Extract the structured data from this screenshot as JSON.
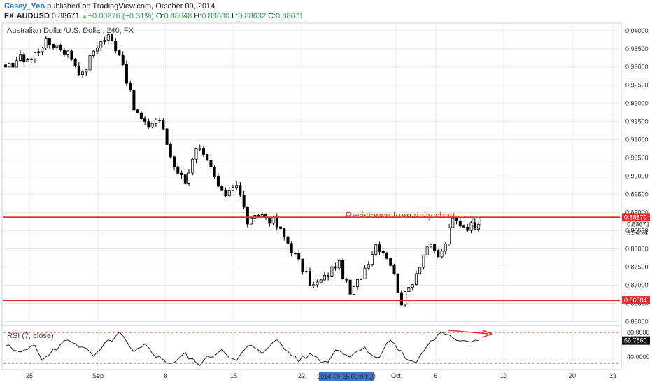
{
  "header": {
    "author": "Casey_Yeo",
    "published": " published on TradingView.com, October 09, 2014",
    "symbol": "FX:AUDUSD",
    "last": "0.88671",
    "change": "+0.00276 (+0.31%)",
    "o_label": "O:",
    "o_value": "0.88648",
    "h_label": "H:",
    "h_value": "0.88680",
    "l_label": "L:",
    "l_value": "0.88632",
    "c_label": "C:",
    "c_value": "0.88671"
  },
  "colors": {
    "candle": "#000000",
    "resistance": "#e5302a",
    "rsi_line": "#222222",
    "rsi_band": "#e5302a",
    "grid": "#e8e8e8",
    "date_tag": "#3d78c6"
  },
  "chart_data": [
    {
      "type": "candlestick",
      "title": "Australian Dollar/U.S. Dollar, 240, FX",
      "ylim": [
        0.8595,
        0.9415
      ],
      "y_ticks": [
        "0.94000",
        "0.93500",
        "0.93000",
        "0.92500",
        "0.92000",
        "0.91500",
        "0.91000",
        "0.90500",
        "0.90000",
        "0.89500",
        "0.89000",
        "0.88500",
        "0.88000",
        "0.87500",
        "0.87000",
        "0.86500",
        "0.86000"
      ],
      "x_ticks": [
        "25",
        "Sep",
        "8",
        "15",
        "22",
        "Oct",
        "6",
        "13",
        "20",
        "23"
      ],
      "x_tag": "2014-09-25 09:00:00",
      "time_to_close": "3:54:24",
      "last_price": "0.88671",
      "horizontal_lines": [
        {
          "value": 0.8887,
          "label": "0.88870"
        },
        {
          "value": 0.86584,
          "label": "0.86584"
        }
      ],
      "annotation": "Resistance from daily chart",
      "close_path": [
        0.929,
        0.9325,
        0.9322,
        0.9368,
        0.936,
        0.9335,
        0.9275,
        0.9355,
        0.9385,
        0.9335,
        0.9188,
        0.9135,
        0.9162,
        0.9045,
        0.8985,
        0.9075,
        0.9025,
        0.8942,
        0.8987,
        0.8867,
        0.8895,
        0.8875,
        0.8822,
        0.876,
        0.8695,
        0.872,
        0.8765,
        0.8672,
        0.874,
        0.8815,
        0.8775,
        0.8652,
        0.8725,
        0.881,
        0.8775,
        0.888,
        0.8862,
        0.88671
      ],
      "points": 130
    },
    {
      "type": "line",
      "title": "RSI (7, close)",
      "ylim": [
        22,
        88
      ],
      "y_ticks": [
        "80.0000",
        "40.0000"
      ],
      "band_levels": [
        80,
        30
      ],
      "current_value": "66.7860",
      "close_path": [
        60,
        45,
        62,
        35,
        55,
        70,
        55,
        40,
        65,
        78,
        45,
        60,
        38,
        30,
        45,
        28,
        40,
        55,
        30,
        60,
        45,
        70,
        50,
        35,
        45,
        30,
        55,
        40,
        60,
        35,
        70,
        45,
        28,
        60,
        78,
        70,
        68,
        66.786
      ],
      "points": 130
    }
  ]
}
